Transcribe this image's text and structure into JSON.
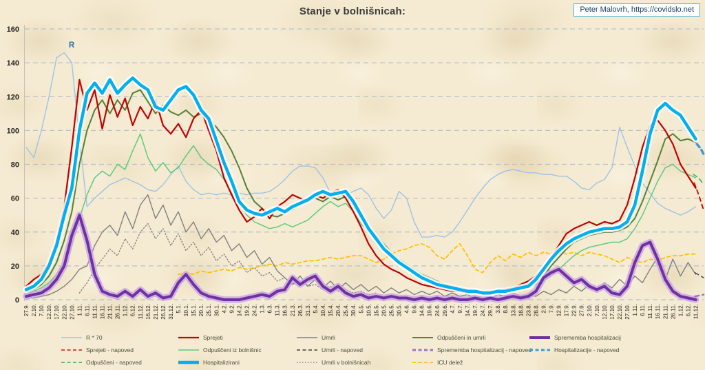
{
  "title": "Stanje v bolnišnicah:",
  "credit": "Peter Malovrh, https://covidslo.net",
  "colors": {
    "background": "#f5ebd2",
    "grid": "#b9bfca",
    "axis_text": "#262626",
    "title_text": "#3b3b3b",
    "credit_border": "#4aaedd",
    "credit_text": "#17375e",
    "r70": "#9dc3e6",
    "sprejeti": "#c00000",
    "odpusceni_iz_bolnisnic": "#5fc97e",
    "odpusceni_in_umrli": "#538135",
    "umrli": "#808080",
    "umrli_v_bolnisnicah": "#7f7f7f",
    "hospitalizirani": "#00b0f0",
    "sprememba_hospitalizacij": "#7030a0",
    "icu_delez": "#ffc000",
    "napoved_blue": "#3d9bd5"
  },
  "chart_data": {
    "type": "line",
    "title": "Stanje v bolnišnicah:",
    "ylim": [
      0,
      160
    ],
    "y_ticks": [
      0,
      20,
      40,
      60,
      80,
      100,
      120,
      140,
      160
    ],
    "grid": "dashed-horizontal",
    "annotation": {
      "text": "R",
      "index": 5.6,
      "value": 149
    },
    "x_tick_labels": [
      "27.9.",
      "2.10.",
      "7.10.",
      "12.10.",
      "17.10.",
      "22.10.",
      "27.10.",
      "1.11.",
      "6.11.",
      "11.11.",
      "16.11.",
      "21.11.",
      "26.11.",
      "1.12.",
      "6.12.",
      "11.12.",
      "16.12.",
      "21.12.",
      "26.12.",
      "31.12.",
      "5.1.",
      "10.1.",
      "15.1.",
      "20.1.",
      "25.1.",
      "30.1.",
      "4.2.",
      "9.2.",
      "14.2.",
      "19.2.",
      "24.2.",
      "1.3.",
      "6.3.",
      "11.3.",
      "16.3.",
      "21.3.",
      "26.3.",
      "31.3.",
      "5.4.",
      "10.4.",
      "15.4.",
      "20.4.",
      "25.4.",
      "30.4.",
      "5.5.",
      "10.5.",
      "15.5.",
      "20.5.",
      "25.5.",
      "30.5.",
      "4.6.",
      "9.6.",
      "14.6.",
      "19.6.",
      "24.6.",
      "29.6.",
      "4.7.",
      "9.7.",
      "14.7.",
      "19.7.",
      "24.7.",
      "29.7.",
      "3.8.",
      "8.8.",
      "13.8.",
      "18.8.",
      "23.8.",
      "28.8.",
      "2.9.",
      "7.9.",
      "12.9.",
      "17.9.",
      "22.9.",
      "27.9.",
      "2.10.",
      "7.10.",
      "12.10.",
      "17.10.",
      "22.10.",
      "27.10.",
      "1.11.",
      "6.11.",
      "11.11.",
      "16.11.",
      "21.11.",
      "26.11.",
      "1.12.",
      "6.12.",
      "11.12."
    ],
    "series": [
      {
        "key": "r70",
        "name": "R * 70",
        "color": "#9dc3e6",
        "width": 1.4,
        "style": "solid",
        "values": [
          90,
          84,
          100,
          120,
          143,
          146,
          140,
          95,
          55,
          60,
          64,
          68,
          70,
          72,
          70,
          68,
          65,
          64,
          68,
          74,
          79,
          70,
          65,
          62,
          63,
          62,
          63,
          62,
          63,
          62,
          63,
          63,
          64,
          67,
          71,
          76,
          79,
          79,
          78,
          72,
          63,
          61,
          62,
          64,
          66,
          62,
          54,
          48,
          53,
          64,
          60,
          46,
          37,
          37,
          38,
          37,
          40,
          46,
          53,
          60,
          66,
          71,
          74,
          76,
          77,
          76,
          75,
          75,
          74,
          74,
          73,
          73,
          70,
          66,
          65,
          69,
          71,
          78,
          102,
          90,
          79,
          69,
          63,
          57,
          54,
          52,
          50,
          52,
          55
        ]
      },
      {
        "key": "umrli_v_bolnisnicah",
        "name": "Umrli v bolnišnicah",
        "color": "#7f7f7f",
        "width": 1.3,
        "style": "dotted",
        "values": [
          null,
          null,
          null,
          null,
          null,
          null,
          null,
          4,
          10,
          18,
          24,
          30,
          26,
          36,
          30,
          40,
          45,
          36,
          42,
          32,
          39,
          29,
          34,
          26,
          31,
          23,
          27,
          20,
          23,
          16,
          19,
          14,
          16,
          11,
          13,
          9,
          11,
          8,
          9,
          6,
          8,
          5,
          6,
          4,
          5,
          3,
          4,
          null,
          null,
          null,
          null,
          null,
          null,
          null,
          null,
          null,
          null,
          null,
          null,
          null,
          null,
          null,
          null,
          null,
          null,
          null,
          null,
          null,
          null,
          null,
          null,
          null,
          null,
          null,
          null,
          null,
          null,
          null,
          null,
          null,
          null,
          null,
          null,
          null,
          null,
          null,
          null,
          null,
          null
        ]
      },
      {
        "key": "icu_delez",
        "name": "ICU delež",
        "color": "#ffc000",
        "width": 1.8,
        "style": "dashed",
        "values": [
          null,
          null,
          null,
          null,
          null,
          null,
          null,
          null,
          null,
          null,
          null,
          null,
          null,
          null,
          null,
          null,
          null,
          null,
          null,
          null,
          15,
          16,
          15,
          17,
          16,
          17,
          18,
          17,
          19,
          18,
          19,
          20,
          21,
          20,
          22,
          21,
          22,
          23,
          23,
          24,
          25,
          24,
          25,
          26,
          26,
          24,
          22,
          24,
          27,
          29,
          30,
          32,
          33,
          31,
          26,
          24,
          29,
          33,
          26,
          18,
          16,
          22,
          26,
          23,
          27,
          25,
          28,
          26,
          28,
          27,
          29,
          27,
          28,
          26,
          28,
          27,
          26,
          24,
          22,
          25,
          23,
          22,
          24,
          23,
          25,
          26,
          26,
          27,
          27
        ]
      },
      {
        "key": "umrli",
        "name": "Umrli",
        "color": "#808080",
        "width": 1.4,
        "style": "solid",
        "values": [
          1,
          1,
          2,
          3,
          5,
          8,
          12,
          18,
          20,
          32,
          40,
          44,
          38,
          52,
          42,
          56,
          62,
          48,
          56,
          44,
          52,
          40,
          46,
          36,
          42,
          34,
          38,
          29,
          33,
          25,
          29,
          21,
          25,
          17,
          13,
          9,
          14,
          8,
          12,
          7,
          11,
          6,
          10,
          6,
          9,
          5,
          8,
          4,
          7,
          4,
          6,
          3,
          5,
          3,
          5,
          2,
          4,
          2,
          3,
          1,
          3,
          1,
          3,
          2,
          4,
          2,
          3,
          2,
          5,
          3,
          6,
          4,
          8,
          5,
          9,
          6,
          10,
          7,
          12,
          8,
          14,
          10,
          18,
          25,
          12,
          24,
          14,
          22,
          15
        ]
      },
      {
        "key": "odpusceni_iz_bolnisnic",
        "name": "Odpuščeni iz bolnišnic",
        "color": "#5fc97e",
        "width": 1.5,
        "style": "solid",
        "values": [
          4,
          5,
          7,
          10,
          15,
          22,
          32,
          48,
          62,
          72,
          76,
          73,
          80,
          77,
          88,
          98,
          84,
          76,
          81,
          75,
          78,
          85,
          91,
          84,
          80,
          77,
          71,
          63,
          56,
          50,
          46,
          44,
          42,
          43,
          45,
          43,
          45,
          47,
          51,
          55,
          58,
          55,
          57,
          52,
          45,
          40,
          35,
          30,
          26,
          22,
          19,
          16,
          13,
          11,
          9,
          8,
          7,
          6,
          5,
          5,
          4,
          4,
          5,
          5,
          6,
          7,
          8,
          9,
          11,
          14,
          18,
          22,
          26,
          29,
          31,
          32,
          33,
          34,
          34,
          36,
          42,
          50,
          60,
          70,
          78,
          80,
          76,
          74,
          72
        ]
      },
      {
        "key": "odpusceni_in_umrli",
        "name": "Odpuščeni in umrli",
        "color": "#538135",
        "width": 2,
        "style": "solid",
        "values": [
          5,
          6,
          9,
          14,
          22,
          35,
          52,
          80,
          100,
          112,
          118,
          110,
          118,
          112,
          122,
          124,
          117,
          110,
          115,
          111,
          109,
          112,
          108,
          110,
          106,
          102,
          96,
          88,
          78,
          66,
          58,
          54,
          50,
          49,
          51,
          53,
          56,
          58,
          60,
          58,
          61,
          59,
          61,
          56,
          48,
          43,
          38,
          33,
          28,
          24,
          21,
          18,
          15,
          13,
          11,
          9,
          8,
          7,
          6,
          5,
          5,
          5,
          5,
          6,
          7,
          8,
          9,
          10,
          14,
          20,
          25,
          30,
          34,
          36,
          38,
          39,
          40,
          40,
          41,
          43,
          48,
          58,
          70,
          82,
          95,
          98,
          94,
          95,
          93
        ]
      },
      {
        "key": "sprejeti",
        "name": "Sprejeti",
        "color": "#c00000",
        "width": 2.2,
        "style": "solid",
        "values": [
          8,
          12,
          15,
          22,
          35,
          55,
          90,
          130,
          112,
          124,
          101,
          121,
          108,
          119,
          103,
          114,
          107,
          118,
          103,
          98,
          104,
          96,
          107,
          112,
          100,
          88,
          72,
          62,
          53,
          46,
          49,
          54,
          48,
          55,
          58,
          62,
          60,
          58,
          62,
          60,
          63,
          65,
          60,
          52,
          43,
          33,
          26,
          21,
          18,
          16,
          13,
          11,
          9,
          8,
          7,
          6,
          5,
          5,
          4,
          4,
          4,
          5,
          5,
          6,
          7,
          9,
          11,
          14,
          19,
          25,
          32,
          39,
          42,
          44,
          46,
          44,
          46,
          45,
          47,
          56,
          72,
          90,
          103,
          106,
          100,
          92,
          80,
          73,
          66
        ]
      },
      {
        "key": "sprememba_hospitalizacij",
        "name": "Sprememba hospitalizacij",
        "color": "#7030a0",
        "width": 4,
        "style": "solid",
        "glow": "#c9a8e6",
        "values": [
          2,
          3,
          4,
          7,
          12,
          20,
          38,
          50,
          35,
          15,
          5,
          3,
          2,
          5,
          2,
          6,
          2,
          4,
          1,
          2,
          10,
          15,
          9,
          4,
          2,
          1,
          0,
          0,
          0,
          1,
          2,
          3,
          2,
          5,
          6,
          13,
          9,
          12,
          14,
          8,
          5,
          8,
          4,
          2,
          3,
          1,
          2,
          1,
          2,
          1,
          1,
          0,
          1,
          0,
          1,
          0,
          1,
          0,
          0,
          1,
          0,
          1,
          0,
          1,
          2,
          1,
          2,
          5,
          13,
          16,
          18,
          14,
          10,
          12,
          8,
          6,
          8,
          4,
          3,
          8,
          22,
          32,
          34,
          24,
          12,
          5,
          2,
          1,
          0
        ]
      },
      {
        "key": "hospitalizirani",
        "name": "Hospitalizirani",
        "color": "#00b0f0",
        "width": 4.5,
        "style": "solid",
        "glow": "#ffffff",
        "values": [
          6,
          8,
          12,
          20,
          32,
          50,
          66,
          100,
          122,
          128,
          122,
          130,
          122,
          127,
          131,
          127,
          124,
          114,
          112,
          118,
          124,
          126,
          121,
          112,
          107,
          94,
          81,
          70,
          58,
          53,
          51,
          50,
          52,
          54,
          52,
          55,
          57,
          59,
          62,
          64,
          62,
          63,
          64,
          58,
          50,
          42,
          36,
          30,
          26,
          22,
          19,
          16,
          13,
          11,
          9,
          8,
          7,
          6,
          5,
          5,
          4,
          4,
          5,
          5,
          6,
          7,
          8,
          12,
          18,
          24,
          29,
          33,
          36,
          38,
          40,
          41,
          42,
          42,
          43,
          46,
          56,
          76,
          98,
          112,
          116,
          112,
          109,
          102,
          95
        ]
      }
    ],
    "forecasts": [
      {
        "key": "umrli_napoved",
        "name": "Umrli - napoved",
        "color": "#404040",
        "width": 1.4,
        "points": [
          [
            87.9,
            16
          ],
          [
            89.1,
            13
          ]
        ]
      },
      {
        "key": "sprememba_napoved",
        "name": "Sprememba hospitalizacij - napoved",
        "color": "#9b76c4",
        "width": 2.5,
        "points": [
          [
            87.9,
            2
          ],
          [
            89.1,
            3
          ]
        ]
      },
      {
        "key": "odpusceni_napoved",
        "name": "Odpuščeni - napoved",
        "color": "#54b06c",
        "width": 1.8,
        "points": [
          [
            87.7,
            74
          ],
          [
            88.4,
            72
          ],
          [
            89.1,
            68
          ]
        ]
      },
      {
        "key": "sprejeti_napoved",
        "name": "Sprejeti - napoved",
        "color": "#c00000",
        "width": 1.8,
        "points": [
          [
            87.8,
            69
          ],
          [
            88.4,
            62
          ],
          [
            89.1,
            53
          ]
        ]
      },
      {
        "key": "hospitalizacije_napoved",
        "name": "Hospitalizacije - napoved",
        "color": "#3d9bd5",
        "width": 3.5,
        "points": [
          [
            88.15,
            92
          ],
          [
            88.7,
            89
          ],
          [
            89.1,
            86
          ]
        ]
      }
    ],
    "legend": [
      {
        "row": 0,
        "col": 0,
        "label": "R * 70",
        "color": "#9dc3e6",
        "weight": 1.4,
        "dash": "solid"
      },
      {
        "row": 0,
        "col": 1,
        "label": "Sprejeti",
        "color": "#c00000",
        "weight": 2.2,
        "dash": "solid"
      },
      {
        "row": 0,
        "col": 2,
        "label": "Umrli",
        "color": "#808080",
        "weight": 1.6,
        "dash": "solid"
      },
      {
        "row": 0,
        "col": 3,
        "label": "Odpuščeni in umrli",
        "color": "#538135",
        "weight": 2,
        "dash": "solid"
      },
      {
        "row": 0,
        "col": 4,
        "label": "Sprememba hospitalizacij",
        "color": "#7030a0",
        "weight": 4,
        "dash": "solid"
      },
      {
        "row": 1,
        "col": 0,
        "label": "Sprejeti - napoved",
        "color": "#cc3333",
        "weight": 1.8,
        "dash": "dashed"
      },
      {
        "row": 1,
        "col": 1,
        "label": "Odpuščeni iz bolnišnic",
        "color": "#5fc97e",
        "weight": 1.6,
        "dash": "solid"
      },
      {
        "row": 1,
        "col": 2,
        "label": "Umrli - napoved",
        "color": "#404040",
        "weight": 1.6,
        "dash": "dashed"
      },
      {
        "row": 1,
        "col": 3,
        "label": "Sprememba hospitalizacij - napoved",
        "color": "#9b76c4",
        "weight": 3,
        "dash": "dashed"
      },
      {
        "row": 1,
        "col": 4,
        "label": "Hospitalizacije - napoved",
        "color": "#3d9bd5",
        "weight": 3,
        "dash": "dashed"
      },
      {
        "row": 2,
        "col": 0,
        "label": "Odpuščeni - napoved",
        "color": "#54b06c",
        "weight": 1.8,
        "dash": "dashed"
      },
      {
        "row": 2,
        "col": 1,
        "label": "Hospitalizirani",
        "color": "#00b0f0",
        "weight": 4.5,
        "dash": "solid"
      },
      {
        "row": 2,
        "col": 2,
        "label": "Umrli v bolnišnicah",
        "color": "#7f7f7f",
        "weight": 1.5,
        "dash": "dotted"
      },
      {
        "row": 2,
        "col": 3,
        "label": "ICU delež",
        "color": "#ffc000",
        "weight": 1.8,
        "dash": "dashed"
      }
    ]
  }
}
